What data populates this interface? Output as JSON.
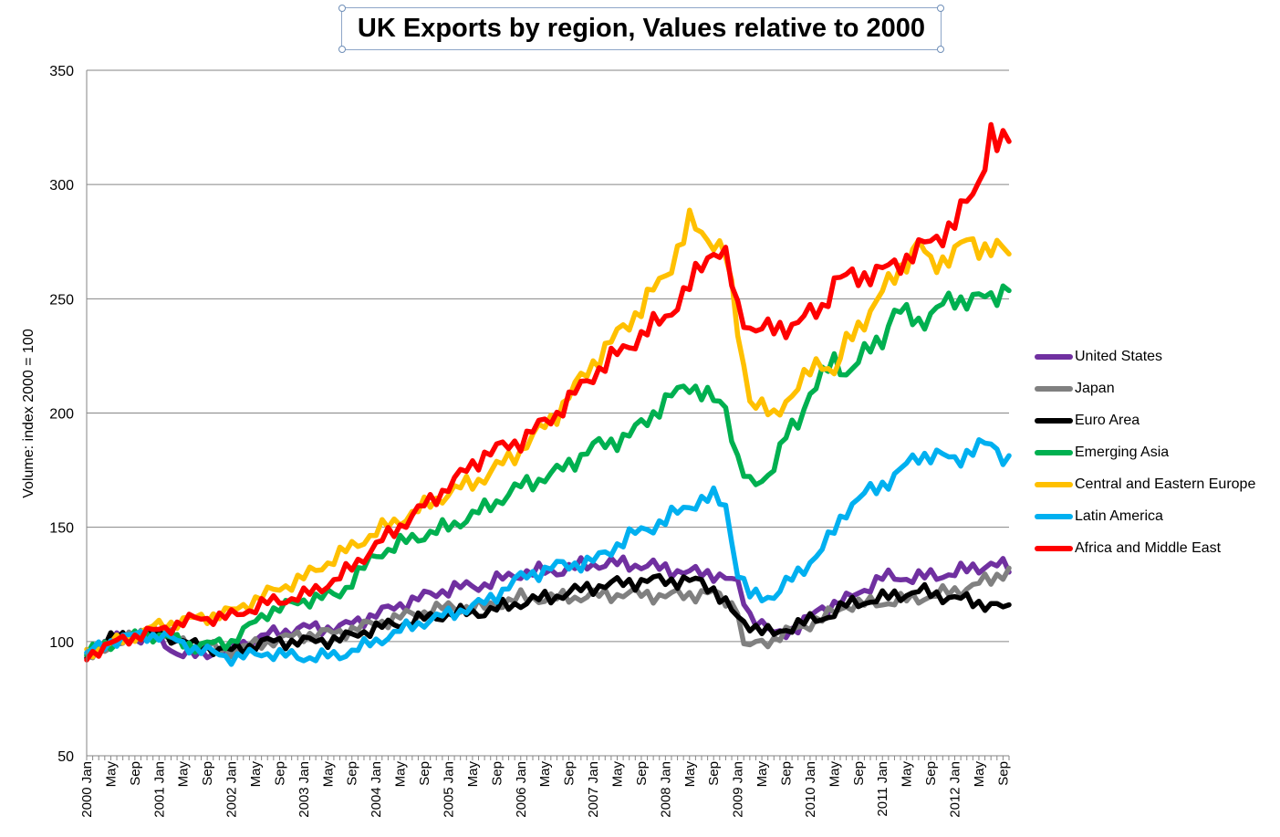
{
  "chart_data": {
    "type": "line",
    "title": "UK Exports by region, Values relative to 2000",
    "ylabel": "Volume: index 2000 = 100",
    "xlabel": "",
    "ylim": [
      50,
      350
    ],
    "yticks": [
      50,
      100,
      150,
      200,
      250,
      300,
      350
    ],
    "grid": "horizontal",
    "legend_position": "right",
    "x_start": "2000 Jan",
    "x_end": "2012 Sep",
    "x_tick_labels": [
      "2000 Jan",
      "May",
      "Sep",
      "2001 Jan",
      "May",
      "Sep",
      "2002 Jan",
      "May",
      "Sep",
      "2003 Jan",
      "May",
      "Sep",
      "2004 Jan",
      "May",
      "Sep",
      "2005 Jan",
      "May",
      "Sep",
      "2006 Jan",
      "May",
      "Sep",
      "2007 Jan",
      "May",
      "Sep",
      "2008 Jan",
      "May",
      "Sep",
      "2009 Jan",
      "May",
      "Sep",
      "2010 Jan",
      "May",
      "Sep",
      "2011 Jan",
      "May",
      "Sep",
      "2012 Jan",
      "May",
      "Sep"
    ],
    "series": [
      {
        "name": "United States",
        "color": "#7030a0",
        "knots": [
          [
            0,
            95
          ],
          [
            6,
            102
          ],
          [
            12,
            101
          ],
          [
            15,
            95
          ],
          [
            18,
            94
          ],
          [
            24,
            97
          ],
          [
            30,
            103
          ],
          [
            36,
            106
          ],
          [
            42,
            106
          ],
          [
            48,
            112
          ],
          [
            54,
            118
          ],
          [
            60,
            123
          ],
          [
            66,
            125
          ],
          [
            72,
            130
          ],
          [
            78,
            131
          ],
          [
            84,
            134
          ],
          [
            90,
            134
          ],
          [
            96,
            132
          ],
          [
            100,
            130
          ],
          [
            104,
            130
          ],
          [
            108,
            125
          ],
          [
            110,
            112
          ],
          [
            114,
            103
          ],
          [
            118,
            106
          ],
          [
            122,
            115
          ],
          [
            126,
            118
          ],
          [
            132,
            128
          ],
          [
            138,
            128
          ],
          [
            144,
            130
          ],
          [
            150,
            134
          ],
          [
            153,
            132
          ]
        ]
      },
      {
        "name": "Japan",
        "color": "#808080",
        "knots": [
          [
            0,
            92
          ],
          [
            6,
            101
          ],
          [
            12,
            104
          ],
          [
            18,
            98
          ],
          [
            24,
            96
          ],
          [
            30,
            100
          ],
          [
            36,
            103
          ],
          [
            42,
            104
          ],
          [
            48,
            108
          ],
          [
            54,
            112
          ],
          [
            60,
            115
          ],
          [
            66,
            115
          ],
          [
            72,
            119
          ],
          [
            78,
            119
          ],
          [
            84,
            120
          ],
          [
            90,
            121
          ],
          [
            96,
            120
          ],
          [
            102,
            121
          ],
          [
            104,
            121
          ],
          [
            108,
            115
          ],
          [
            109,
            97
          ],
          [
            112,
            100
          ],
          [
            114,
            101
          ],
          [
            118,
            106
          ],
          [
            122,
            110
          ],
          [
            126,
            116
          ],
          [
            132,
            117
          ],
          [
            138,
            119
          ],
          [
            144,
            122
          ],
          [
            150,
            127
          ],
          [
            153,
            132
          ]
        ]
      },
      {
        "name": "Euro Area",
        "color": "#000000",
        "knots": [
          [
            0,
            94
          ],
          [
            4,
            101
          ],
          [
            12,
            104
          ],
          [
            18,
            98
          ],
          [
            24,
            96
          ],
          [
            30,
            100
          ],
          [
            36,
            100
          ],
          [
            42,
            101
          ],
          [
            48,
            106
          ],
          [
            54,
            109
          ],
          [
            60,
            112
          ],
          [
            66,
            113
          ],
          [
            72,
            117
          ],
          [
            78,
            120
          ],
          [
            84,
            124
          ],
          [
            90,
            126
          ],
          [
            96,
            127
          ],
          [
            102,
            126
          ],
          [
            104,
            123
          ],
          [
            108,
            110
          ],
          [
            112,
            105
          ],
          [
            114,
            103
          ],
          [
            118,
            108
          ],
          [
            122,
            110
          ],
          [
            126,
            116
          ],
          [
            132,
            119
          ],
          [
            138,
            122
          ],
          [
            144,
            119
          ],
          [
            150,
            116
          ],
          [
            153,
            114
          ]
        ]
      },
      {
        "name": "Emerging Asia",
        "color": "#00b050",
        "knots": [
          [
            0,
            95
          ],
          [
            6,
            101
          ],
          [
            12,
            103
          ],
          [
            18,
            98
          ],
          [
            24,
            100
          ],
          [
            30,
            113
          ],
          [
            36,
            118
          ],
          [
            42,
            121
          ],
          [
            48,
            138
          ],
          [
            54,
            145
          ],
          [
            60,
            150
          ],
          [
            66,
            158
          ],
          [
            72,
            168
          ],
          [
            78,
            174
          ],
          [
            84,
            185
          ],
          [
            90,
            190
          ],
          [
            96,
            205
          ],
          [
            100,
            213
          ],
          [
            104,
            205
          ],
          [
            106,
            203
          ],
          [
            108,
            180
          ],
          [
            110,
            168
          ],
          [
            112,
            170
          ],
          [
            114,
            178
          ],
          [
            116,
            190
          ],
          [
            118,
            195
          ],
          [
            120,
            210
          ],
          [
            124,
            222
          ],
          [
            126,
            218
          ],
          [
            132,
            233
          ],
          [
            134,
            245
          ],
          [
            138,
            240
          ],
          [
            144,
            250
          ],
          [
            150,
            250
          ],
          [
            153,
            257
          ]
        ]
      },
      {
        "name": "Central and Eastern Europe",
        "color": "#ffc000",
        "knots": [
          [
            0,
            95
          ],
          [
            6,
            101
          ],
          [
            12,
            107
          ],
          [
            18,
            110
          ],
          [
            24,
            113
          ],
          [
            30,
            121
          ],
          [
            36,
            128
          ],
          [
            42,
            138
          ],
          [
            48,
            148
          ],
          [
            54,
            156
          ],
          [
            60,
            165
          ],
          [
            66,
            172
          ],
          [
            72,
            184
          ],
          [
            78,
            200
          ],
          [
            84,
            222
          ],
          [
            90,
            240
          ],
          [
            96,
            260
          ],
          [
            98,
            272
          ],
          [
            100,
            283
          ],
          [
            102,
            278
          ],
          [
            104,
            276
          ],
          [
            106,
            270
          ],
          [
            108,
            235
          ],
          [
            110,
            207
          ],
          [
            112,
            203
          ],
          [
            114,
            197
          ],
          [
            116,
            206
          ],
          [
            118,
            212
          ],
          [
            122,
            223
          ],
          [
            124,
            218
          ],
          [
            126,
            230
          ],
          [
            130,
            245
          ],
          [
            134,
            260
          ],
          [
            138,
            274
          ],
          [
            140,
            265
          ],
          [
            144,
            270
          ],
          [
            146,
            275
          ],
          [
            150,
            272
          ],
          [
            153,
            270
          ]
        ]
      },
      {
        "name": "Latin America",
        "color": "#00b0f0",
        "knots": [
          [
            0,
            95
          ],
          [
            6,
            102
          ],
          [
            12,
            103
          ],
          [
            18,
            97
          ],
          [
            24,
            93
          ],
          [
            30,
            95
          ],
          [
            36,
            93
          ],
          [
            42,
            94
          ],
          [
            48,
            100
          ],
          [
            54,
            107
          ],
          [
            60,
            112
          ],
          [
            66,
            117
          ],
          [
            72,
            128
          ],
          [
            78,
            133
          ],
          [
            84,
            135
          ],
          [
            90,
            146
          ],
          [
            96,
            153
          ],
          [
            100,
            160
          ],
          [
            104,
            163
          ],
          [
            106,
            160
          ],
          [
            108,
            130
          ],
          [
            110,
            120
          ],
          [
            114,
            120
          ],
          [
            118,
            130
          ],
          [
            122,
            140
          ],
          [
            126,
            158
          ],
          [
            130,
            166
          ],
          [
            134,
            172
          ],
          [
            138,
            182
          ],
          [
            144,
            180
          ],
          [
            150,
            187
          ],
          [
            153,
            179
          ]
        ]
      },
      {
        "name": "Africa and Middle East",
        "color": "#ff0000",
        "knots": [
          [
            0,
            94
          ],
          [
            6,
            101
          ],
          [
            12,
            105
          ],
          [
            18,
            110
          ],
          [
            24,
            111
          ],
          [
            30,
            117
          ],
          [
            36,
            120
          ],
          [
            42,
            128
          ],
          [
            48,
            142
          ],
          [
            54,
            155
          ],
          [
            60,
            168
          ],
          [
            66,
            182
          ],
          [
            72,
            188
          ],
          [
            78,
            200
          ],
          [
            84,
            217
          ],
          [
            90,
            230
          ],
          [
            96,
            242
          ],
          [
            100,
            255
          ],
          [
            102,
            265
          ],
          [
            104,
            272
          ],
          [
            106,
            268
          ],
          [
            108,
            245
          ],
          [
            110,
            238
          ],
          [
            114,
            236
          ],
          [
            118,
            240
          ],
          [
            122,
            246
          ],
          [
            124,
            258
          ],
          [
            128,
            260
          ],
          [
            132,
            262
          ],
          [
            136,
            268
          ],
          [
            140,
            275
          ],
          [
            144,
            283
          ],
          [
            146,
            292
          ],
          [
            148,
            302
          ],
          [
            150,
            322
          ],
          [
            151,
            316
          ],
          [
            153,
            320
          ]
        ]
      }
    ]
  }
}
